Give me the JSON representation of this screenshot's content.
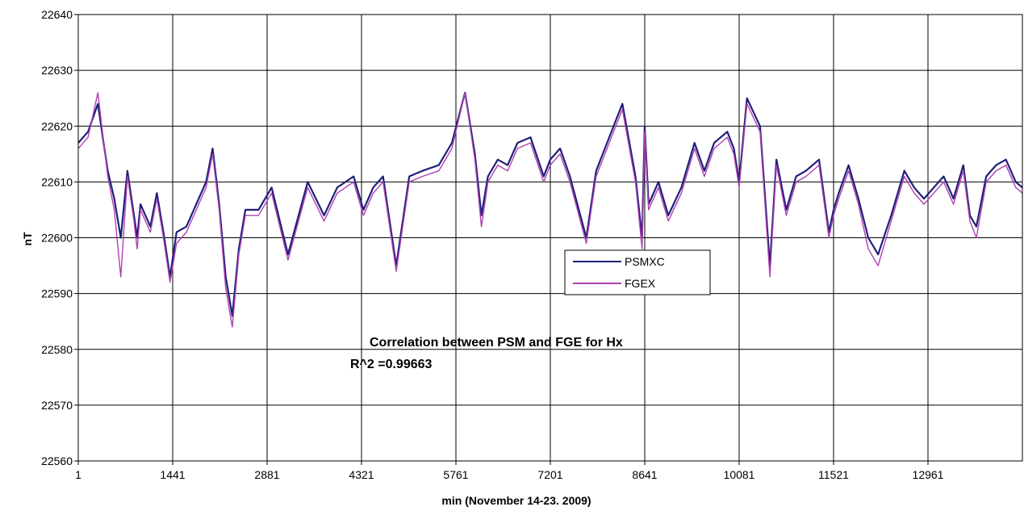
{
  "chart_data": {
    "type": "line",
    "title": "",
    "xlabel": "min (November 14-23.  2009)",
    "ylabel": "nT",
    "xlim": [
      1,
      14401
    ],
    "ylim": [
      22560,
      22640
    ],
    "x_ticks": [
      "1",
      "1441",
      "2881",
      "4321",
      "5761",
      "7201",
      "8641",
      "10081",
      "11521",
      "12961"
    ],
    "y_ticks": [
      "22560",
      "22570",
      "22580",
      "22590",
      "22600",
      "22610",
      "22620",
      "22630",
      "22640"
    ],
    "grid": true,
    "legend_position": "center-right",
    "annotations": {
      "correlation_title": "Correlation between PSM and FGE for Hx",
      "r_squared": "R^2 =0.99663"
    },
    "series": [
      {
        "name": "PSMXC",
        "color": "#1f1f7a",
        "x": [
          1,
          150,
          300,
          450,
          550,
          650,
          750,
          850,
          900,
          950,
          1100,
          1200,
          1300,
          1400,
          1500,
          1650,
          1800,
          1950,
          2050,
          2150,
          2250,
          2350,
          2450,
          2550,
          2650,
          2750,
          2950,
          3200,
          3500,
          3750,
          3950,
          4200,
          4350,
          4500,
          4650,
          4850,
          5050,
          5250,
          5500,
          5700,
          5900,
          6050,
          6150,
          6250,
          6400,
          6550,
          6700,
          6900,
          7100,
          7200,
          7350,
          7500,
          7750,
          7900,
          8100,
          8300,
          8500,
          8600,
          8640,
          8700,
          8850,
          9000,
          9200,
          9400,
          9550,
          9700,
          9900,
          10000,
          10081,
          10200,
          10400,
          10550,
          10650,
          10800,
          10950,
          11100,
          11300,
          11450,
          11521,
          11600,
          11750,
          11900,
          12050,
          12200,
          12400,
          12600,
          12750,
          12900,
          13050,
          13200,
          13350,
          13500,
          13600,
          13700,
          13850,
          14000,
          14150,
          14300,
          14401
        ],
        "values": [
          22617,
          22619,
          22624,
          22612,
          22607,
          22600,
          22612,
          22604,
          22600,
          22606,
          22602,
          22608,
          22601,
          22593,
          22601,
          22602,
          22606,
          22610,
          22616,
          22606,
          22593,
          22586,
          22598,
          22605,
          22605,
          22605,
          22609,
          22597,
          22610,
          22604,
          22609,
          22611,
          22605,
          22609,
          22611,
          22595,
          22611,
          22612,
          22613,
          22617,
          22626,
          22615,
          22604,
          22611,
          22614,
          22613,
          22617,
          22618,
          22611,
          22614,
          22616,
          22611,
          22600,
          22612,
          22618,
          22624,
          22611,
          22600,
          22620,
          22606,
          22610,
          22604,
          22609,
          22617,
          22612,
          22617,
          22619,
          22616,
          22610,
          22625,
          22620,
          22595,
          22614,
          22605,
          22611,
          22612,
          22614,
          22601,
          22605,
          22608,
          22613,
          22607,
          22600,
          22597,
          22604,
          22612,
          22609,
          22607,
          22609,
          22611,
          22607,
          22613,
          22604,
          22602,
          22611,
          22613,
          22614,
          22610,
          22609
        ]
      },
      {
        "name": "FGEX",
        "color": "#b040b0",
        "x": [
          1,
          150,
          300,
          450,
          550,
          650,
          750,
          850,
          900,
          950,
          1100,
          1200,
          1300,
          1400,
          1500,
          1650,
          1800,
          1950,
          2050,
          2150,
          2250,
          2350,
          2450,
          2550,
          2650,
          2750,
          2950,
          3200,
          3500,
          3750,
          3950,
          4200,
          4350,
          4500,
          4650,
          4850,
          5050,
          5250,
          5500,
          5700,
          5900,
          6050,
          6150,
          6250,
          6400,
          6550,
          6700,
          6900,
          7100,
          7200,
          7350,
          7500,
          7750,
          7900,
          8100,
          8300,
          8500,
          8600,
          8640,
          8700,
          8850,
          9000,
          9200,
          9400,
          9550,
          9700,
          9900,
          10000,
          10081,
          10200,
          10400,
          10550,
          10650,
          10800,
          10950,
          11100,
          11300,
          11450,
          11521,
          11600,
          11750,
          11900,
          12050,
          12200,
          12400,
          12600,
          12750,
          12900,
          13050,
          13200,
          13350,
          13500,
          13600,
          13700,
          13850,
          14000,
          14150,
          14300,
          14401
        ],
        "values": [
          22616,
          22618,
          22626,
          22611,
          22605,
          22593,
          22611,
          22603,
          22598,
          22605,
          22601,
          22607,
          22600,
          22592,
          22599,
          22601,
          22605,
          22609,
          22615,
          22605,
          22591,
          22584,
          22597,
          22604,
          22604,
          22604,
          22608,
          22596,
          22609,
          22603,
          22608,
          22610,
          22604,
          22608,
          22610,
          22594,
          22610,
          22611,
          22612,
          22616,
          22626,
          22614,
          22602,
          22610,
          22613,
          22612,
          22616,
          22617,
          22610,
          22613,
          22615,
          22610,
          22599,
          22611,
          22617,
          22623,
          22610,
          22598,
          22619,
          22605,
          22609,
          22603,
          22608,
          22616,
          22611,
          22616,
          22618,
          22615,
          22609,
          22624,
          22619,
          22593,
          22613,
          22604,
          22610,
          22611,
          22613,
          22600,
          22604,
          22607,
          22612,
          22606,
          22598,
          22595,
          22603,
          22611,
          22608,
          22606,
          22608,
          22610,
          22606,
          22612,
          22603,
          22600,
          22610,
          22612,
          22613,
          22609,
          22608
        ]
      }
    ]
  }
}
